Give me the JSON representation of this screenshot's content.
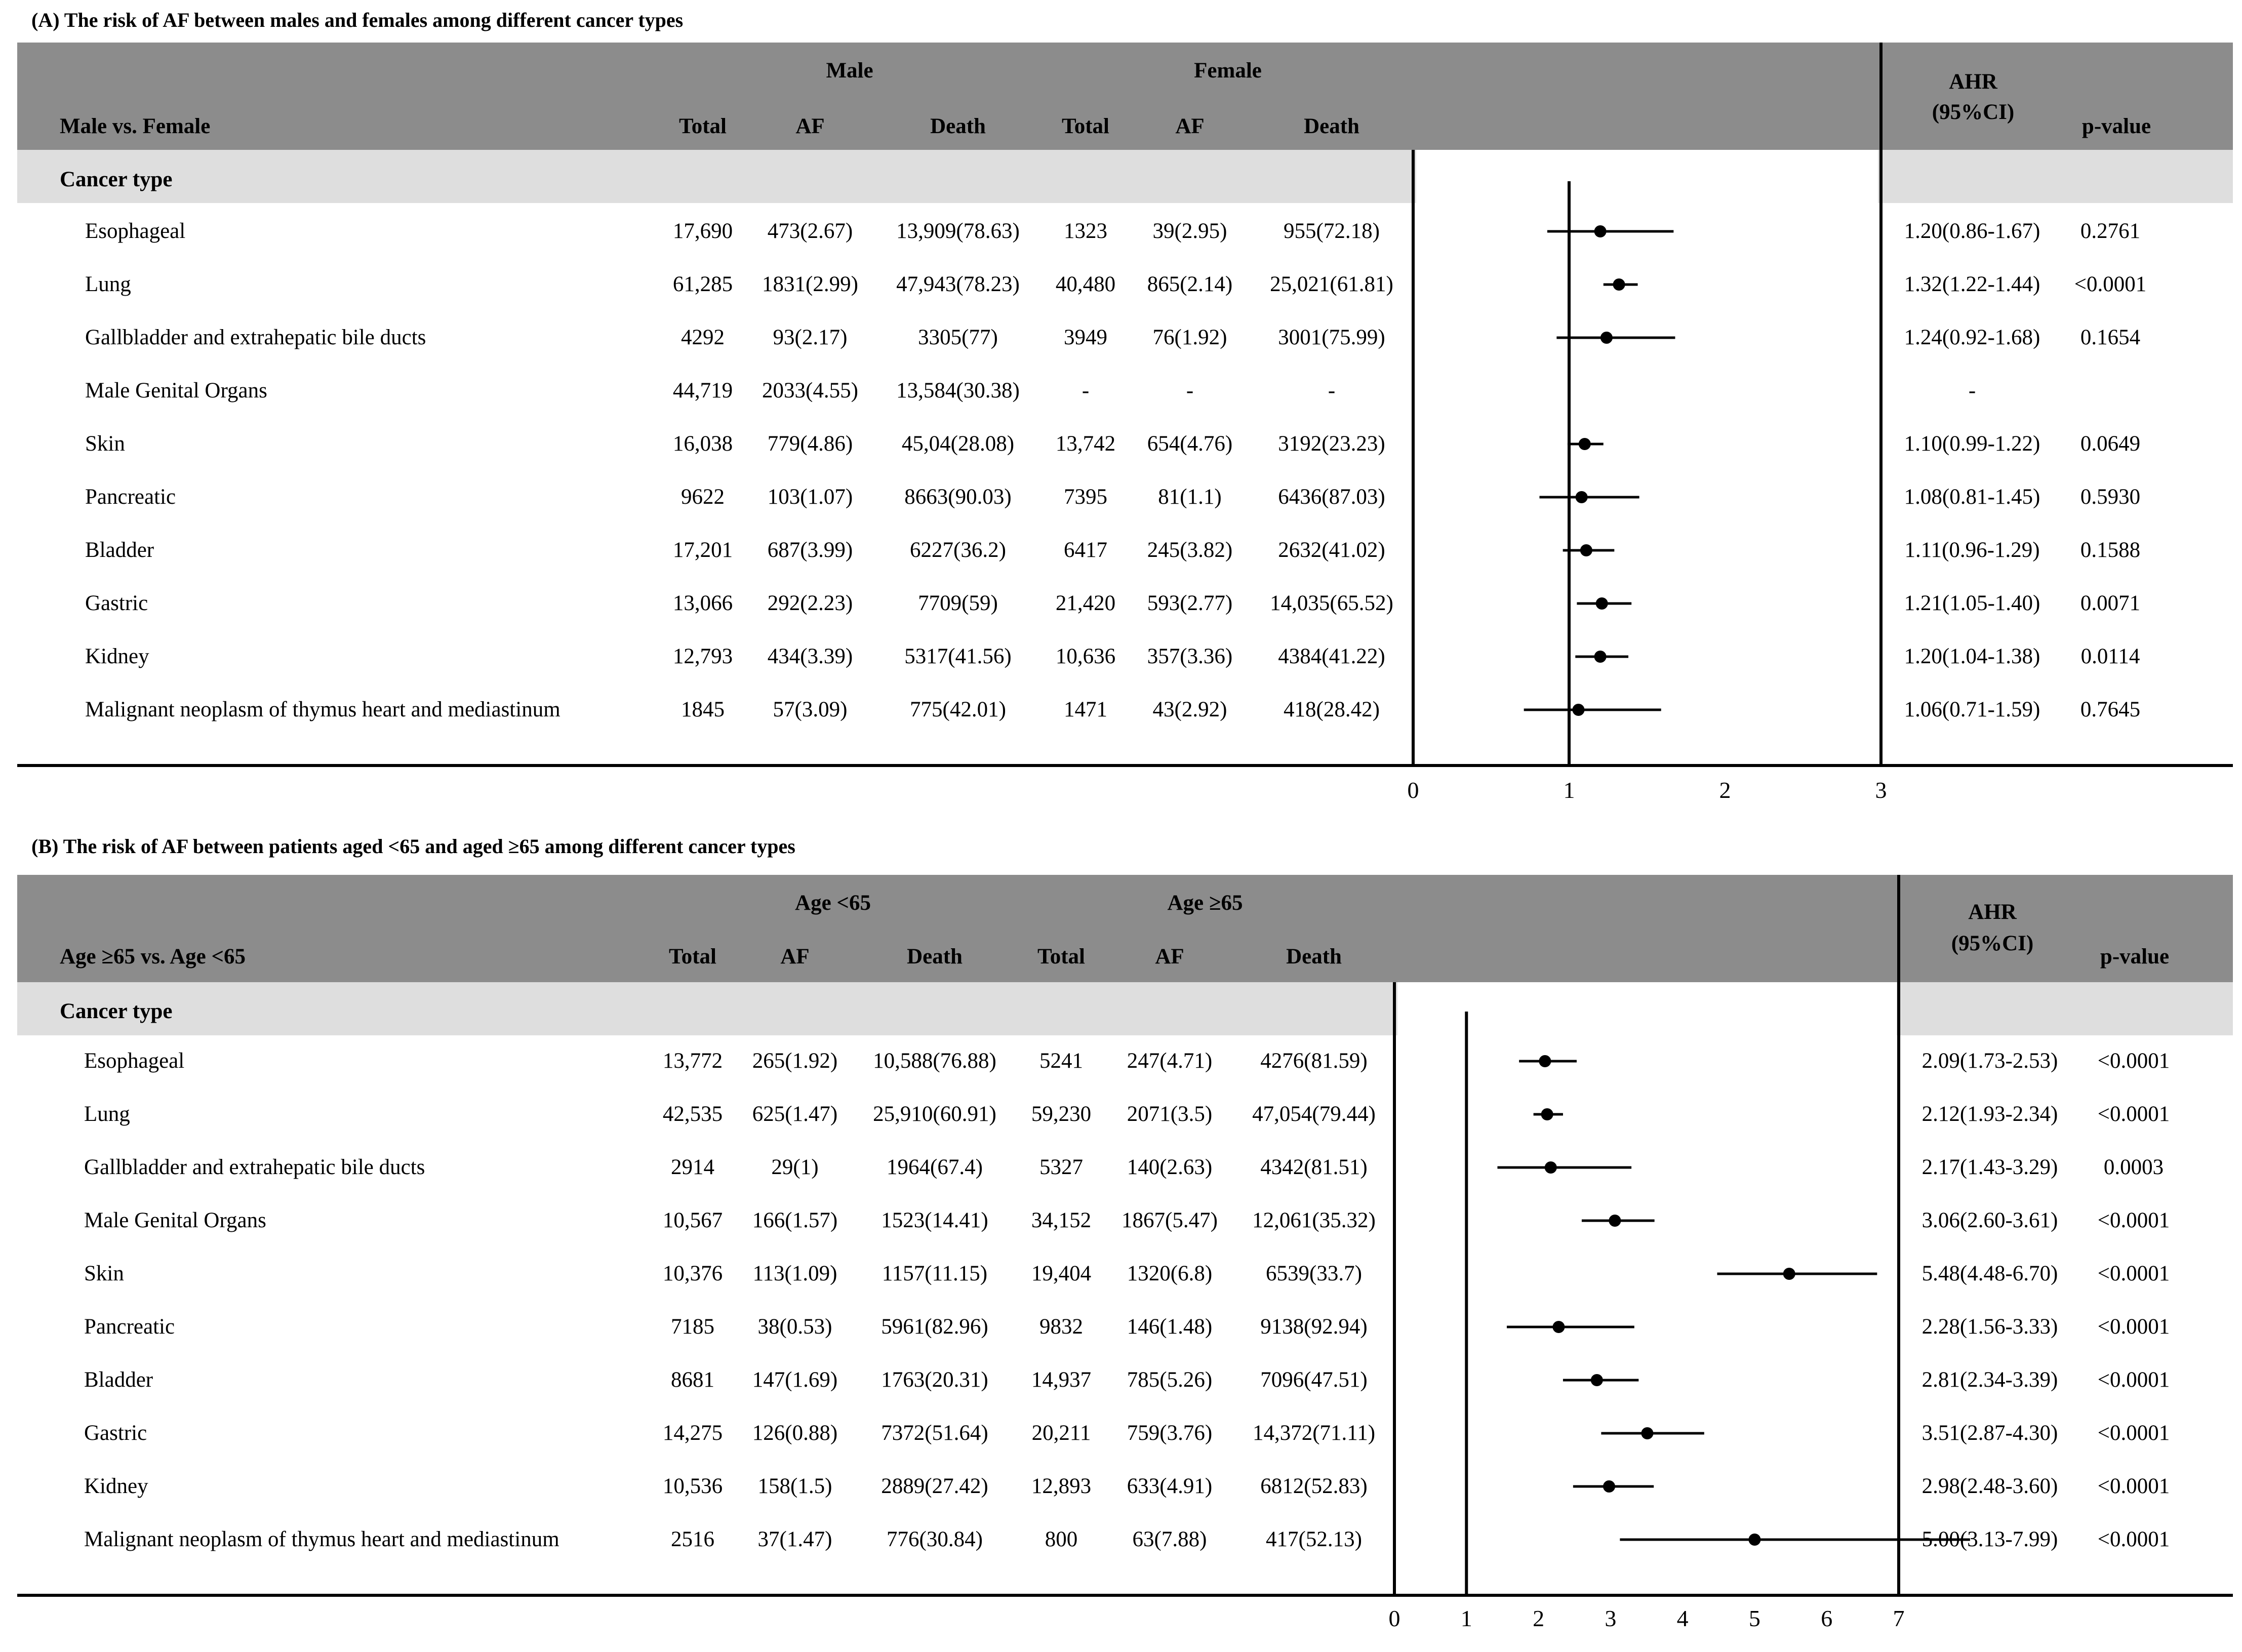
{
  "chart_data": [
    {
      "type": "table",
      "panel_title": "(A) The risk of AF between males and females among different cancer types",
      "comparison_label": "Male vs. Female",
      "group1_label": "Male",
      "group2_label": "Female",
      "columns": [
        "Total",
        "AF",
        "Death",
        "Total",
        "AF",
        "Death"
      ],
      "ahr_label_line1": "AHR",
      "ahr_label_line2": "(95%CI)",
      "pvalue_label": "p-value",
      "section_label": "Cancer type",
      "axis_ticks": [
        0,
        1,
        2,
        3
      ],
      "xlim": [
        0,
        3
      ],
      "rows": [
        {
          "name": "Esophageal",
          "g1_total": "17,690",
          "g1_af": "473(2.67)",
          "g1_death": "13,909(78.63)",
          "g2_total": "1323",
          "g2_af": "39(2.95)",
          "g2_death": "955(72.18)",
          "ahr_text": "1.20(0.86-1.67)",
          "p": "0.2761",
          "est": 1.2,
          "lo": 0.86,
          "hi": 1.67
        },
        {
          "name": "Lung",
          "g1_total": "61,285",
          "g1_af": "1831(2.99)",
          "g1_death": "47,943(78.23)",
          "g2_total": "40,480",
          "g2_af": "865(2.14)",
          "g2_death": "25,021(61.81)",
          "ahr_text": "1.32(1.22-1.44)",
          "p": "<0.0001",
          "est": 1.32,
          "lo": 1.22,
          "hi": 1.44
        },
        {
          "name": "Gallbladder and extrahepatic bile ducts",
          "g1_total": "4292",
          "g1_af": "93(2.17)",
          "g1_death": "3305(77)",
          "g2_total": "3949",
          "g2_af": "76(1.92)",
          "g2_death": "3001(75.99)",
          "ahr_text": "1.24(0.92-1.68)",
          "p": "0.1654",
          "est": 1.24,
          "lo": 0.92,
          "hi": 1.68
        },
        {
          "name": "Male Genital Organs",
          "g1_total": "44,719",
          "g1_af": "2033(4.55)",
          "g1_death": "13,584(30.38)",
          "g2_total": "-",
          "g2_af": "-",
          "g2_death": "-",
          "ahr_text": "-",
          "p": "",
          "est": null,
          "lo": null,
          "hi": null
        },
        {
          "name": "Skin",
          "g1_total": "16,038",
          "g1_af": "779(4.86)",
          "g1_death": "45,04(28.08)",
          "g2_total": "13,742",
          "g2_af": "654(4.76)",
          "g2_death": "3192(23.23)",
          "ahr_text": "1.10(0.99-1.22)",
          "p": "0.0649",
          "est": 1.1,
          "lo": 0.99,
          "hi": 1.22
        },
        {
          "name": "Pancreatic",
          "g1_total": "9622",
          "g1_af": "103(1.07)",
          "g1_death": "8663(90.03)",
          "g2_total": "7395",
          "g2_af": "81(1.1)",
          "g2_death": "6436(87.03)",
          "ahr_text": "1.08(0.81-1.45)",
          "p": "0.5930",
          "est": 1.08,
          "lo": 0.81,
          "hi": 1.45
        },
        {
          "name": "Bladder",
          "g1_total": "17,201",
          "g1_af": "687(3.99)",
          "g1_death": "6227(36.2)",
          "g2_total": "6417",
          "g2_af": "245(3.82)",
          "g2_death": "2632(41.02)",
          "ahr_text": "1.11(0.96-1.29)",
          "p": "0.1588",
          "est": 1.11,
          "lo": 0.96,
          "hi": 1.29
        },
        {
          "name": "Gastric",
          "g1_total": "13,066",
          "g1_af": "292(2.23)",
          "g1_death": "7709(59)",
          "g2_total": "21,420",
          "g2_af": "593(2.77)",
          "g2_death": "14,035(65.52)",
          "ahr_text": "1.21(1.05-1.40)",
          "p": "0.0071",
          "est": 1.21,
          "lo": 1.05,
          "hi": 1.4
        },
        {
          "name": "Kidney",
          "g1_total": "12,793",
          "g1_af": "434(3.39)",
          "g1_death": "5317(41.56)",
          "g2_total": "10,636",
          "g2_af": "357(3.36)",
          "g2_death": "4384(41.22)",
          "ahr_text": "1.20(1.04-1.38)",
          "p": "0.0114",
          "est": 1.2,
          "lo": 1.04,
          "hi": 1.38
        },
        {
          "name": "Malignant neoplasm of thymus heart and mediastinum",
          "g1_total": "1845",
          "g1_af": "57(3.09)",
          "g1_death": "775(42.01)",
          "g2_total": "1471",
          "g2_af": "43(2.92)",
          "g2_death": "418(28.42)",
          "ahr_text": "1.06(0.71-1.59)",
          "p": "0.7645",
          "est": 1.06,
          "lo": 0.71,
          "hi": 1.59
        }
      ]
    },
    {
      "type": "table",
      "panel_title": "(B) The risk of AF between patients aged <65 and aged ≥65 among different cancer types",
      "comparison_label": "Age ≥65 vs. Age <65",
      "group1_label": "Age <65",
      "group2_label": "Age ≥65",
      "columns": [
        "Total",
        "AF",
        "Death",
        "Total",
        "AF",
        "Death"
      ],
      "ahr_label_line1": "AHR",
      "ahr_label_line2": "(95%CI)",
      "pvalue_label": "p-value",
      "section_label": "Cancer type",
      "axis_ticks": [
        0,
        1,
        2,
        3,
        4,
        5,
        6,
        7
      ],
      "xlim": [
        0,
        7
      ],
      "rows": [
        {
          "name": "Esophageal",
          "g1_total": "13,772",
          "g1_af": "265(1.92)",
          "g1_death": "10,588(76.88)",
          "g2_total": "5241",
          "g2_af": "247(4.71)",
          "g2_death": "4276(81.59)",
          "ahr_text": "2.09(1.73-2.53)",
          "p": "<0.0001",
          "est": 2.09,
          "lo": 1.73,
          "hi": 2.53
        },
        {
          "name": "Lung",
          "g1_total": "42,535",
          "g1_af": "625(1.47)",
          "g1_death": "25,910(60.91)",
          "g2_total": "59,230",
          "g2_af": "2071(3.5)",
          "g2_death": "47,054(79.44)",
          "ahr_text": "2.12(1.93-2.34)",
          "p": "<0.0001",
          "est": 2.12,
          "lo": 1.93,
          "hi": 2.34
        },
        {
          "name": "Gallbladder and extrahepatic bile ducts",
          "g1_total": "2914",
          "g1_af": "29(1)",
          "g1_death": "1964(67.4)",
          "g2_total": "5327",
          "g2_af": "140(2.63)",
          "g2_death": "4342(81.51)",
          "ahr_text": "2.17(1.43-3.29)",
          "p": "0.0003",
          "est": 2.17,
          "lo": 1.43,
          "hi": 3.29
        },
        {
          "name": "Male Genital Organs",
          "g1_total": "10,567",
          "g1_af": "166(1.57)",
          "g1_death": "1523(14.41)",
          "g2_total": "34,152",
          "g2_af": "1867(5.47)",
          "g2_death": "12,061(35.32)",
          "ahr_text": "3.06(2.60-3.61)",
          "p": "<0.0001",
          "est": 3.06,
          "lo": 2.6,
          "hi": 3.61
        },
        {
          "name": "Skin",
          "g1_total": "10,376",
          "g1_af": "113(1.09)",
          "g1_death": "1157(11.15)",
          "g2_total": "19,404",
          "g2_af": "1320(6.8)",
          "g2_death": "6539(33.7)",
          "ahr_text": "5.48(4.48-6.70)",
          "p": "<0.0001",
          "est": 5.48,
          "lo": 4.48,
          "hi": 6.7
        },
        {
          "name": "Pancreatic",
          "g1_total": "7185",
          "g1_af": "38(0.53)",
          "g1_death": "5961(82.96)",
          "g2_total": "9832",
          "g2_af": "146(1.48)",
          "g2_death": "9138(92.94)",
          "ahr_text": "2.28(1.56-3.33)",
          "p": "<0.0001",
          "est": 2.28,
          "lo": 1.56,
          "hi": 3.33
        },
        {
          "name": "Bladder",
          "g1_total": "8681",
          "g1_af": "147(1.69)",
          "g1_death": "1763(20.31)",
          "g2_total": "14,937",
          "g2_af": "785(5.26)",
          "g2_death": "7096(47.51)",
          "ahr_text": "2.81(2.34-3.39)",
          "p": "<0.0001",
          "est": 2.81,
          "lo": 2.34,
          "hi": 3.39
        },
        {
          "name": "Gastric",
          "g1_total": "14,275",
          "g1_af": "126(0.88)",
          "g1_death": "7372(51.64)",
          "g2_total": "20,211",
          "g2_af": "759(3.76)",
          "g2_death": "14,372(71.11)",
          "ahr_text": "3.51(2.87-4.30)",
          "p": "<0.0001",
          "est": 3.51,
          "lo": 2.87,
          "hi": 4.3
        },
        {
          "name": "Kidney",
          "g1_total": "10,536",
          "g1_af": "158(1.5)",
          "g1_death": "2889(27.42)",
          "g2_total": "12,893",
          "g2_af": "633(4.91)",
          "g2_death": "6812(52.83)",
          "ahr_text": "2.98(2.48-3.60)",
          "p": "<0.0001",
          "est": 2.98,
          "lo": 2.48,
          "hi": 3.6
        },
        {
          "name": "Malignant neoplasm of thymus heart and mediastinum",
          "g1_total": "2516",
          "g1_af": "37(1.47)",
          "g1_death": "776(30.84)",
          "g2_total": "800",
          "g2_af": "63(7.88)",
          "g2_death": "417(52.13)",
          "ahr_text": "5.00(3.13-7.99)",
          "p": "<0.0001",
          "est": 5.0,
          "lo": 3.13,
          "hi": 7.99
        }
      ]
    }
  ]
}
